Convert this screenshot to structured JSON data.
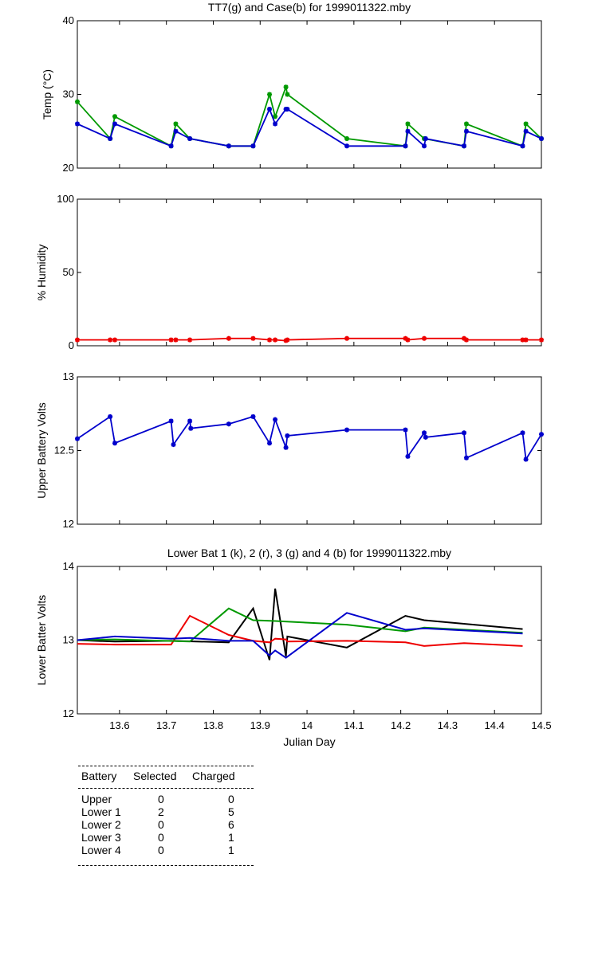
{
  "chart_data": [
    {
      "type": "line",
      "title": "TT7(g) and Case(b) for 1999011322.mby",
      "ylabel": "Temp  (°C)",
      "xlabel": "",
      "xlim": [
        13.51,
        14.5
      ],
      "ylim": [
        20,
        40
      ],
      "yticks": [
        "20",
        "30",
        "40"
      ],
      "series": [
        {
          "name": "TT7",
          "color": "#009900",
          "x": [
            13.51,
            13.58,
            13.59,
            13.71,
            13.72,
            13.75,
            13.833,
            13.885,
            13.92,
            13.932,
            13.955,
            13.958,
            14.085,
            14.21,
            14.215,
            14.25,
            14.335,
            14.34,
            14.46,
            14.467,
            14.5
          ],
          "y": [
            29,
            24,
            27,
            23,
            26,
            24,
            23,
            23,
            30,
            27,
            31,
            30,
            24,
            23,
            26,
            24,
            23,
            26,
            23,
            26,
            24
          ]
        },
        {
          "name": "Case",
          "color": "#0000cc",
          "x": [
            13.51,
            13.58,
            13.59,
            13.71,
            13.72,
            13.75,
            13.833,
            13.885,
            13.92,
            13.932,
            13.955,
            13.958,
            14.085,
            14.21,
            14.215,
            14.25,
            14.253,
            14.335,
            14.34,
            14.46,
            14.467,
            14.5
          ],
          "y": [
            26,
            24,
            26,
            23,
            25,
            24,
            23,
            23,
            28,
            26,
            28,
            28,
            23,
            23,
            25,
            23,
            24,
            23,
            25,
            23,
            25,
            24
          ]
        }
      ]
    },
    {
      "type": "line",
      "title": "",
      "ylabel": "% Humidity",
      "xlabel": "",
      "xlim": [
        13.51,
        14.5
      ],
      "ylim": [
        0,
        100
      ],
      "yticks": [
        "0",
        "50",
        "100"
      ],
      "series": [
        {
          "name": "Humidity",
          "color": "#ee0000",
          "x": [
            13.51,
            13.58,
            13.59,
            13.71,
            13.72,
            13.75,
            13.833,
            13.885,
            13.92,
            13.932,
            13.955,
            13.958,
            14.085,
            14.21,
            14.215,
            14.25,
            14.335,
            14.34,
            14.46,
            14.467,
            14.5
          ],
          "y": [
            4,
            4,
            4,
            4,
            4,
            4,
            5,
            5,
            4,
            4,
            3.5,
            4,
            5,
            5,
            4,
            5,
            5,
            4,
            4,
            4,
            4
          ]
        }
      ]
    },
    {
      "type": "line",
      "title": "",
      "ylabel": "Upper Battery Volts",
      "xlabel": "",
      "xlim": [
        13.51,
        14.5
      ],
      "ylim": [
        12,
        13
      ],
      "yticks": [
        "12",
        "12.5",
        "13"
      ],
      "series": [
        {
          "name": "Upper",
          "color": "#0000cc",
          "x": [
            13.51,
            13.58,
            13.59,
            13.71,
            13.715,
            13.75,
            13.752,
            13.833,
            13.885,
            13.92,
            13.932,
            13.955,
            13.958,
            14.085,
            14.21,
            14.215,
            14.25,
            14.253,
            14.335,
            14.34,
            14.46,
            14.467,
            14.5
          ],
          "y": [
            12.58,
            12.73,
            12.55,
            12.7,
            12.54,
            12.7,
            12.65,
            12.68,
            12.73,
            12.55,
            12.71,
            12.52,
            12.6,
            12.64,
            12.64,
            12.46,
            12.62,
            12.59,
            12.62,
            12.45,
            12.62,
            12.44,
            12.61
          ]
        }
      ]
    },
    {
      "type": "line",
      "title": "Lower Bat 1 (k), 2 (r), 3 (g) and 4 (b) for 1999011322.mby",
      "ylabel": "Lower Batter Volts",
      "xlabel": "Julian Day",
      "xlim": [
        13.51,
        14.5
      ],
      "ylim": [
        12,
        14
      ],
      "yticks": [
        "12",
        "13",
        "14"
      ],
      "xticks": [
        "13.6",
        "13.7",
        "13.8",
        "13.9",
        "14",
        "14.1",
        "14.2",
        "14.3",
        "14.4",
        "14.5"
      ],
      "series": [
        {
          "name": "Lower 1 (k)",
          "color": "#000000",
          "x": [
            13.51,
            13.59,
            13.71,
            13.833,
            13.885,
            13.92,
            13.932,
            13.955,
            13.958,
            14.085,
            14.21,
            14.25,
            14.46
          ],
          "y": [
            13.0,
            12.98,
            12.99,
            12.97,
            13.43,
            12.73,
            13.7,
            12.78,
            13.05,
            12.9,
            13.33,
            13.27,
            13.15
          ]
        },
        {
          "name": "Lower 2 (r)",
          "color": "#ee0000",
          "x": [
            13.51,
            13.59,
            13.71,
            13.75,
            13.833,
            13.885,
            13.92,
            13.932,
            13.955,
            13.958,
            14.085,
            14.21,
            14.25,
            14.335,
            14.46
          ],
          "y": [
            12.95,
            12.94,
            12.94,
            13.33,
            13.07,
            12.99,
            12.97,
            13.02,
            13.01,
            12.98,
            12.99,
            12.97,
            12.92,
            12.96,
            12.92
          ]
        },
        {
          "name": "Lower 3 (g)",
          "color": "#009900",
          "x": [
            13.51,
            13.59,
            13.75,
            13.833,
            13.885,
            13.932,
            14.085,
            14.21,
            14.25,
            14.46
          ],
          "y": [
            13.0,
            13.01,
            12.98,
            13.43,
            13.27,
            13.26,
            13.21,
            13.12,
            13.17,
            13.1
          ]
        },
        {
          "name": "Lower 4 (b)",
          "color": "#0000cc",
          "x": [
            13.51,
            13.59,
            13.71,
            13.75,
            13.833,
            13.885,
            13.92,
            13.932,
            13.955,
            14.085,
            14.21,
            14.25,
            14.46
          ],
          "y": [
            13.0,
            13.05,
            13.02,
            13.03,
            12.99,
            12.99,
            12.79,
            12.86,
            12.76,
            13.37,
            13.14,
            13.16,
            13.09
          ]
        }
      ]
    }
  ],
  "table": {
    "headers": [
      "Battery",
      "Selected",
      "Charged"
    ],
    "rows": [
      {
        "battery": "Upper",
        "selected": "0",
        "charged": "0"
      },
      {
        "battery": "Lower 1",
        "selected": "2",
        "charged": "5"
      },
      {
        "battery": "Lower 2",
        "selected": "0",
        "charged": "6"
      },
      {
        "battery": "Lower 3",
        "selected": "0",
        "charged": "1"
      },
      {
        "battery": "Lower 4",
        "selected": "0",
        "charged": "1"
      }
    ]
  }
}
